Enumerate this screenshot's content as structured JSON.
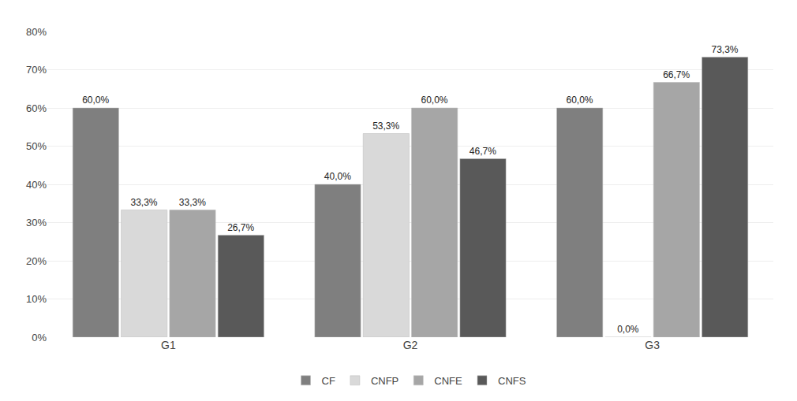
{
  "chart_data": {
    "type": "bar",
    "categories": [
      "G1",
      "G2",
      "G3"
    ],
    "series": [
      {
        "name": "CF",
        "color": "#7f7f7f",
        "values": [
          60.0,
          40.0,
          60.0
        ],
        "value_labels": [
          "60,0%",
          "40,0%",
          "60,0%"
        ]
      },
      {
        "name": "CNFP",
        "color": "#d9d9d9",
        "values": [
          33.3,
          53.3,
          0.0
        ],
        "value_labels": [
          "33,3%",
          "53,3%",
          "0,0%"
        ]
      },
      {
        "name": "CNFE",
        "color": "#a6a6a6",
        "values": [
          33.3,
          60.0,
          66.7
        ],
        "value_labels": [
          "33,3%",
          "60,0%",
          "66,7%"
        ]
      },
      {
        "name": "CNFS",
        "color": "#595959",
        "values": [
          26.7,
          46.7,
          73.3
        ],
        "value_labels": [
          "26,7%",
          "46,7%",
          "73,3%"
        ]
      }
    ],
    "ylim": [
      0,
      80
    ],
    "yticks": [
      {
        "value": 0,
        "label": "0%"
      },
      {
        "value": 10,
        "label": "10%"
      },
      {
        "value": 20,
        "label": "20%"
      },
      {
        "value": 30,
        "label": "30%"
      },
      {
        "value": 40,
        "label": "40%"
      },
      {
        "value": 50,
        "label": "50%"
      },
      {
        "value": 60,
        "label": "60%"
      },
      {
        "value": 70,
        "label": "70%"
      },
      {
        "value": 80,
        "label": "80%"
      }
    ],
    "grid": true,
    "legend": "bottom",
    "data_labels": true
  }
}
